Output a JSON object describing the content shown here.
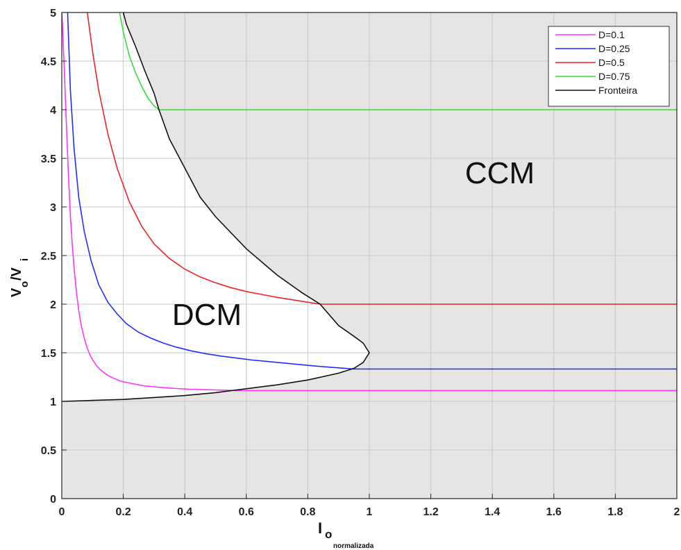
{
  "chart_data": {
    "type": "line",
    "xlabel_main": "I",
    "xlabel_sub": "o",
    "xlabel_subsub": "normalizada",
    "ylabel_main": "V",
    "ylabel_sub1": "o",
    "ylabel_slash": "/V",
    "ylabel_sub2": "i",
    "xlim": [
      0,
      2
    ],
    "ylim": [
      0,
      5
    ],
    "x_ticks": [
      "0",
      "0.2",
      "0.4",
      "0.6",
      "0.8",
      "1",
      "1.2",
      "1.4",
      "1.6",
      "1.8",
      "2"
    ],
    "y_ticks": [
      "0",
      "0.5",
      "1",
      "1.5",
      "2",
      "2.5",
      "3",
      "3.5",
      "4",
      "4.5",
      "5"
    ],
    "grid": true,
    "legend_position": "top-right",
    "annotations": {
      "ccm": "CCM",
      "dcm": "DCM"
    },
    "shading": {
      "region": "CCM",
      "color": "#e6e5e3"
    },
    "series": [
      {
        "name": "D=0.1",
        "duty": 0.1,
        "color": "#ff33ff",
        "dcm": {
          "x": [
            0.0003,
            0.0011,
            0.0025,
            0.0044,
            0.007,
            0.0101,
            0.0138,
            0.0181,
            0.0229,
            0.0283,
            0.0342,
            0.0407,
            0.0478,
            0.0554,
            0.0635,
            0.0722,
            0.0815,
            0.0912,
            0.1015,
            0.1124,
            0.1238,
            0.1357,
            0.1482,
            0.1611,
            0.1746,
            0.1886,
            0.2031,
            0.2181,
            0.2336,
            0.2496,
            0.2661,
            0.2831,
            0.3005,
            0.3184,
            0.3368,
            0.3556,
            0.3749,
            0.3946,
            0.4147,
            0.4352,
            0.4562,
            0.4776,
            0.4993,
            0.5214,
            0.5439,
            0.5667
          ],
          "y": [
            5.0,
            4.95,
            4.85,
            4.7,
            4.5,
            4.25,
            3.95,
            3.6,
            3.25,
            2.9,
            2.6,
            2.35,
            2.12,
            1.93,
            1.78,
            1.66,
            1.56,
            1.48,
            1.42,
            1.37,
            1.33,
            1.3,
            1.27,
            1.25,
            1.23,
            1.21,
            1.2,
            1.19,
            1.18,
            1.17,
            1.16,
            1.155,
            1.15,
            1.145,
            1.14,
            1.135,
            1.132,
            1.129,
            1.126,
            1.124,
            1.122,
            1.12,
            1.118,
            1.116,
            1.114,
            1.111
          ]
        },
        "ccm_y": 1.111
      },
      {
        "name": "D=0.25",
        "duty": 0.25,
        "color": "#1f2bff",
        "dcm": {
          "x": [
            0.019,
            0.028,
            0.04,
            0.055,
            0.073,
            0.095,
            0.12,
            0.15,
            0.18,
            0.21,
            0.25,
            0.29,
            0.33,
            0.37,
            0.42,
            0.47,
            0.52,
            0.57,
            0.62,
            0.67,
            0.72,
            0.77,
            0.82,
            0.87,
            0.91,
            0.95
          ],
          "y": [
            5.0,
            4.2,
            3.6,
            3.1,
            2.75,
            2.45,
            2.2,
            2.02,
            1.9,
            1.8,
            1.71,
            1.65,
            1.6,
            1.56,
            1.52,
            1.49,
            1.465,
            1.445,
            1.425,
            1.41,
            1.395,
            1.38,
            1.365,
            1.352,
            1.342,
            1.333
          ]
        },
        "ccm_y": 1.333
      },
      {
        "name": "D=0.5",
        "duty": 0.5,
        "color": "#ee2222",
        "dcm": {
          "x": [
            0.083,
            0.1,
            0.12,
            0.15,
            0.18,
            0.22,
            0.26,
            0.3,
            0.35,
            0.4,
            0.45,
            0.5,
            0.55,
            0.6,
            0.65,
            0.7,
            0.75,
            0.8,
            0.84
          ],
          "y": [
            5.0,
            4.6,
            4.2,
            3.75,
            3.4,
            3.05,
            2.8,
            2.62,
            2.47,
            2.36,
            2.28,
            2.22,
            2.17,
            2.13,
            2.1,
            2.07,
            2.045,
            2.02,
            2.0
          ]
        },
        "ccm_y": 2.0
      },
      {
        "name": "D=0.75",
        "duty": 0.75,
        "color": "#33dd33",
        "dcm": {
          "x": [
            0.188,
            0.2,
            0.22,
            0.24,
            0.26,
            0.28,
            0.3,
            0.316
          ],
          "y": [
            5.0,
            4.8,
            4.55,
            4.38,
            4.24,
            4.12,
            4.04,
            4.0
          ]
        },
        "ccm_y": 4.0
      },
      {
        "name": "Fronteira",
        "color": "#111111",
        "x": [
          0.0,
          0.1,
          0.2,
          0.3,
          0.4,
          0.5,
          0.55,
          0.6,
          0.7,
          0.8,
          0.9,
          0.95,
          0.98,
          1.0,
          0.98,
          0.95,
          0.9,
          0.84,
          0.78,
          0.7,
          0.6,
          0.5,
          0.45,
          0.4,
          0.35,
          0.316,
          0.3,
          0.27,
          0.24,
          0.21,
          0.2
        ],
        "y": [
          1.0,
          1.01,
          1.02,
          1.04,
          1.06,
          1.09,
          1.11,
          1.13,
          1.17,
          1.22,
          1.29,
          1.34,
          1.4,
          1.5,
          1.6,
          1.67,
          1.78,
          2.0,
          2.12,
          2.3,
          2.57,
          2.9,
          3.1,
          3.4,
          3.7,
          4.0,
          4.17,
          4.4,
          4.65,
          4.88,
          5.0
        ]
      }
    ]
  }
}
